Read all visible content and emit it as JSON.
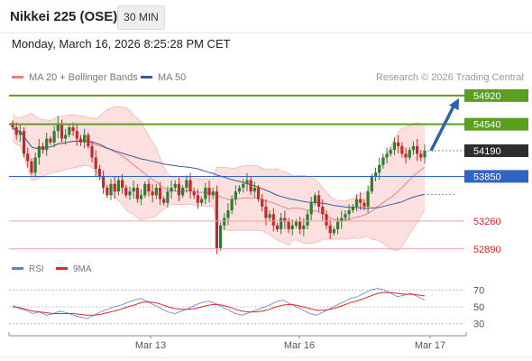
{
  "header": {
    "title": "Nikkei 225 (OSE)",
    "timeframe": "30 MIN"
  },
  "datetime": "Monday, March 16, 2026 8:25:28 PM CET",
  "legend": {
    "bollinger_label": "MA 20 + Bollinger Bands",
    "bollinger_color": "#f08080",
    "ma50_label": "MA 50",
    "ma50_color": "#3a5ba0"
  },
  "credit": "Research © 2026 Trading Central",
  "colors": {
    "resistance": "#5aa01e",
    "support_blue": "#2f63c4",
    "support_red": "#f0a0a0",
    "support_red_text": "#d9262c",
    "price_tag": "#2d2d2d",
    "bull_candle": "#2e7d32",
    "bear_candle": "#c62828",
    "band_fill": "#fbd3d3",
    "arrow": "#2f63a8",
    "rsi": "#5b7fdb",
    "rsi_ma": "#e0282d"
  },
  "rsi_legend": {
    "rsi_label": "RSI",
    "ma_label": "9MA"
  },
  "chart_data": [
    {
      "type": "candlestick",
      "ylim": [
        52780,
        55050
      ],
      "price_levels": [
        {
          "value": 54920,
          "label": "54920",
          "kind": "resistance"
        },
        {
          "value": 54540,
          "label": "54540",
          "kind": "resistance"
        },
        {
          "value": 54190,
          "label": "54190",
          "kind": "last"
        },
        {
          "value": 53850,
          "label": "53850",
          "kind": "support-key"
        },
        {
          "value": 53260,
          "label": "53260",
          "kind": "support"
        },
        {
          "value": 52890,
          "label": "52890",
          "kind": "support"
        }
      ],
      "x_ticks": [
        "Mar 13",
        "Mar 16",
        "Mar 17"
      ],
      "arrow": {
        "from": 54190,
        "to": 54920
      },
      "closes": [
        54500,
        54400,
        54450,
        54150,
        54050,
        53900,
        54100,
        54250,
        54200,
        54350,
        54300,
        54450,
        54550,
        54350,
        54400,
        54500,
        54450,
        54350,
        54300,
        54400,
        54250,
        54100,
        53950,
        53850,
        53700,
        53600,
        53750,
        53650,
        53800,
        53700,
        53600,
        53650,
        53700,
        53550,
        53600,
        53750,
        53650,
        53600,
        53700,
        53550,
        53500,
        53650,
        53700,
        53750,
        53600,
        53700,
        53800,
        53650,
        53600,
        53500,
        53550,
        53700,
        53600,
        53650,
        52900,
        53200,
        53300,
        53400,
        53550,
        53650,
        53700,
        53750,
        53800,
        53650,
        53700,
        53550,
        53450,
        53300,
        53350,
        53200,
        53150,
        53300,
        53250,
        53150,
        53200,
        53250,
        53150,
        53200,
        53350,
        53500,
        53600,
        53450,
        53350,
        53200,
        53100,
        53150,
        53250,
        53300,
        53350,
        53400,
        53450,
        53550,
        53500,
        53450,
        53650,
        53850,
        53900,
        54000,
        54100,
        54150,
        54200,
        54300,
        54250,
        54150,
        54100,
        54200,
        54250,
        54150,
        54100,
        54190
      ]
    },
    {
      "type": "line",
      "title": "RSI",
      "ylim": [
        20,
        80
      ],
      "y_ticks": [
        70,
        50,
        30
      ],
      "series": [
        {
          "name": "RSI",
          "values": [
            52,
            48,
            46,
            42,
            44,
            40,
            42,
            45,
            43,
            40,
            38,
            36,
            40,
            44,
            47,
            50,
            52,
            55,
            58,
            60,
            56,
            52,
            48,
            44,
            42,
            45,
            48,
            52,
            55,
            57,
            54,
            50,
            46,
            42,
            40,
            43,
            46,
            49,
            52,
            56,
            58,
            54,
            50,
            46,
            42,
            40,
            44,
            48,
            52,
            56,
            60,
            62,
            66,
            70,
            72,
            70,
            66,
            62,
            64,
            66,
            62,
            58
          ]
        },
        {
          "name": "9MA",
          "values": [
            50,
            49,
            47,
            45,
            44,
            43,
            42,
            42,
            42,
            42,
            41,
            40,
            40,
            41,
            43,
            45,
            47,
            50,
            52,
            55,
            56,
            55,
            53,
            50,
            48,
            47,
            47,
            48,
            50,
            52,
            53,
            52,
            50,
            47,
            45,
            44,
            44,
            45,
            47,
            50,
            52,
            53,
            52,
            50,
            48,
            46,
            46,
            47,
            49,
            52,
            55,
            57,
            60,
            63,
            66,
            67,
            67,
            66,
            65,
            65,
            64,
            63
          ]
        }
      ]
    }
  ]
}
